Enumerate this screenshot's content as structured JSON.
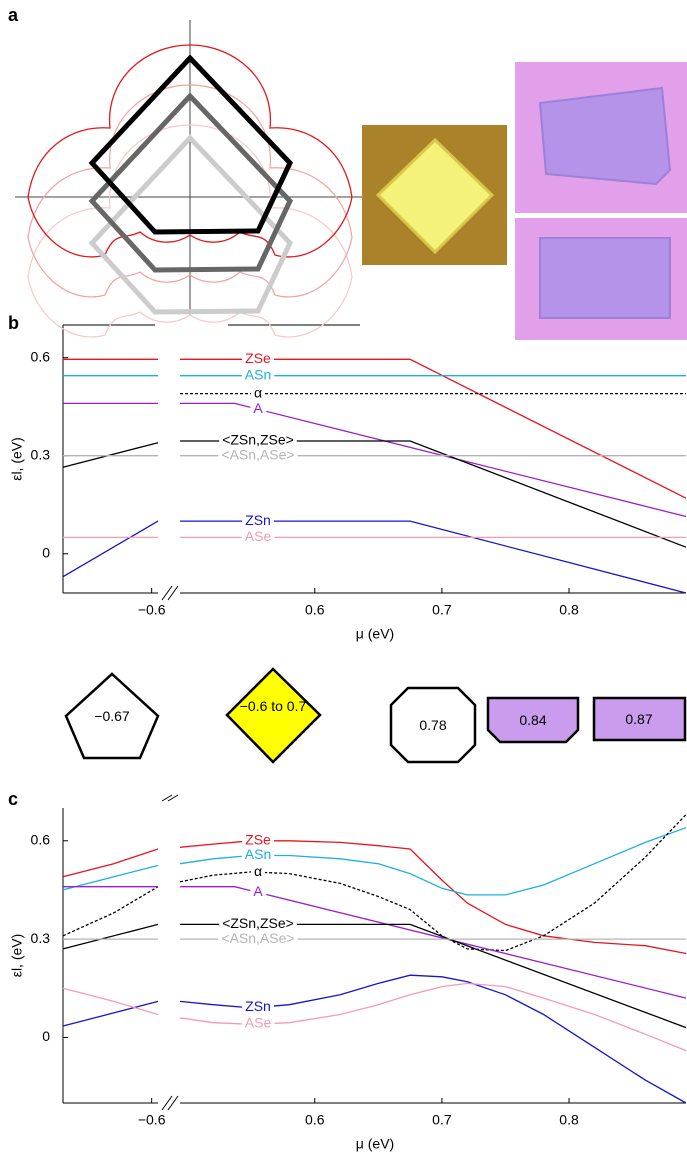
{
  "panels": [
    "a",
    "b",
    "c"
  ],
  "shape_labels": [
    "−0.67",
    "−0.6 to 0.7",
    "0.78",
    "0.84",
    "0.87"
  ],
  "chart_data": [
    {
      "type": "line",
      "ylabel": "εl, (eV)",
      "xlabel": "μ (eV)",
      "ylim": [
        -0.12,
        0.7
      ],
      "yticks": [
        0,
        0.3,
        0.6
      ],
      "xsegments": [
        {
          "xlim": [
            -0.67,
            -0.595
          ],
          "xticks": [
            {
              "value": -0.6,
              "label": "−0.6"
            }
          ]
        },
        {
          "xlim": [
            0.494,
            0.892
          ],
          "xticks": [
            0.6,
            0.7,
            0.8
          ]
        }
      ],
      "series": [
        {
          "name": "ZSe",
          "color": "#e8141e",
          "x": [
            -0.67,
            -0.595,
            0.494,
            0.675,
            0.892
          ],
          "values": [
            0.595,
            0.595,
            0.595,
            0.595,
            0.17
          ]
        },
        {
          "name": "ASn",
          "color": "#1ab0e8",
          "x": [
            -0.67,
            -0.595,
            0.494,
            0.892
          ],
          "values": [
            0.545,
            0.545,
            0.545,
            0.545
          ]
        },
        {
          "name": "α",
          "color": "#000000",
          "dash": true,
          "x": [
            0.494,
            0.892
          ],
          "values": [
            0.49,
            0.49
          ]
        },
        {
          "name": "A",
          "color": "#9a1ed0",
          "x": [
            -0.67,
            -0.595,
            0.494,
            0.537,
            0.892
          ],
          "values": [
            0.46,
            0.46,
            0.46,
            0.46,
            0.114
          ]
        },
        {
          "name": "<ZSn,ZSe>",
          "color": "#000000",
          "x": [
            -0.67,
            -0.595,
            0.494,
            0.675,
            0.892
          ],
          "values": [
            0.265,
            0.34,
            0.345,
            0.345,
            0.02
          ]
        },
        {
          "name": "<ASn,ASe>",
          "color": "#b4b4b4",
          "x": [
            -0.67,
            -0.595,
            0.494,
            0.892
          ],
          "values": [
            0.3,
            0.3,
            0.3,
            0.3
          ]
        },
        {
          "name": "ZSn",
          "color": "#1414d2",
          "x": [
            -0.67,
            -0.595,
            0.494,
            0.675,
            0.892
          ],
          "values": [
            -0.07,
            0.1,
            0.1,
            0.1,
            -0.12
          ]
        },
        {
          "name": "ASe",
          "color": "#f59ab4",
          "x": [
            -0.67,
            -0.595,
            0.494,
            0.892
          ],
          "values": [
            0.05,
            0.05,
            0.05,
            0.05
          ]
        }
      ]
    },
    {
      "type": "line",
      "ylabel": "εl, (eV)",
      "xlabel": "μ (eV)",
      "ylim": [
        -0.2,
        0.7
      ],
      "yticks": [
        0,
        0.3,
        0.6
      ],
      "xsegments": [
        {
          "xlim": [
            -0.67,
            -0.595
          ],
          "xticks": [
            {
              "value": -0.6,
              "label": "−0.6"
            }
          ]
        },
        {
          "xlim": [
            0.494,
            0.892
          ],
          "xticks": [
            0.6,
            0.7,
            0.8
          ]
        }
      ],
      "series": [
        {
          "name": "ZSe",
          "color": "#e8141e",
          "x": [
            -0.67,
            -0.63,
            -0.595,
            0.494,
            0.52,
            0.55,
            0.58,
            0.62,
            0.65,
            0.675,
            0.7,
            0.72,
            0.75,
            0.78,
            0.82,
            0.86,
            0.892
          ],
          "values": [
            0.49,
            0.53,
            0.575,
            0.58,
            0.59,
            0.6,
            0.6,
            0.595,
            0.585,
            0.575,
            0.48,
            0.41,
            0.345,
            0.31,
            0.29,
            0.28,
            0.256
          ]
        },
        {
          "name": "ASn",
          "color": "#1ab0e8",
          "x": [
            -0.67,
            -0.63,
            -0.595,
            0.494,
            0.52,
            0.55,
            0.58,
            0.62,
            0.65,
            0.675,
            0.7,
            0.72,
            0.75,
            0.78,
            0.82,
            0.86,
            0.892
          ],
          "values": [
            0.45,
            0.49,
            0.525,
            0.53,
            0.545,
            0.555,
            0.555,
            0.545,
            0.53,
            0.5,
            0.455,
            0.435,
            0.435,
            0.465,
            0.53,
            0.595,
            0.64
          ]
        },
        {
          "name": "α",
          "color": "#000000",
          "dash": true,
          "x": [
            -0.67,
            -0.63,
            -0.595,
            0.494,
            0.52,
            0.55,
            0.58,
            0.62,
            0.65,
            0.675,
            0.7,
            0.72,
            0.75,
            0.78,
            0.82,
            0.86,
            0.892
          ],
          "values": [
            0.31,
            0.38,
            0.46,
            0.475,
            0.495,
            0.505,
            0.5,
            0.47,
            0.43,
            0.39,
            0.31,
            0.27,
            0.265,
            0.31,
            0.41,
            0.55,
            0.68
          ]
        },
        {
          "name": "A",
          "color": "#9a1ed0",
          "x": [
            -0.67,
            -0.595,
            0.494,
            0.537,
            0.892
          ],
          "values": [
            0.46,
            0.46,
            0.46,
            0.46,
            0.12
          ]
        },
        {
          "name": "<ZSn,ZSe>",
          "color": "#000000",
          "x": [
            -0.67,
            -0.595,
            0.494,
            0.675,
            0.892
          ],
          "values": [
            0.27,
            0.345,
            0.345,
            0.345,
            0.03
          ]
        },
        {
          "name": "<ASn,ASe>",
          "color": "#b4b4b4",
          "x": [
            -0.67,
            -0.595,
            0.494,
            0.892
          ],
          "values": [
            0.3,
            0.3,
            0.3,
            0.3
          ]
        },
        {
          "name": "ZSn",
          "color": "#1414d2",
          "x": [
            -0.67,
            -0.63,
            -0.595,
            0.494,
            0.52,
            0.55,
            0.58,
            0.62,
            0.65,
            0.675,
            0.7,
            0.72,
            0.75,
            0.78,
            0.82,
            0.86,
            0.892
          ],
          "values": [
            0.035,
            0.075,
            0.11,
            0.11,
            0.1,
            0.09,
            0.1,
            0.13,
            0.165,
            0.19,
            0.185,
            0.17,
            0.13,
            0.07,
            -0.03,
            -0.13,
            -0.2
          ]
        },
        {
          "name": "ASe",
          "color": "#f59ab4",
          "x": [
            -0.67,
            -0.63,
            -0.595,
            0.494,
            0.52,
            0.55,
            0.58,
            0.62,
            0.65,
            0.675,
            0.7,
            0.72,
            0.75,
            0.78,
            0.82,
            0.86,
            0.892
          ],
          "values": [
            0.15,
            0.11,
            0.07,
            0.06,
            0.045,
            0.04,
            0.045,
            0.07,
            0.1,
            0.13,
            0.155,
            0.165,
            0.155,
            0.12,
            0.07,
            0.01,
            -0.04
          ]
        }
      ]
    }
  ]
}
